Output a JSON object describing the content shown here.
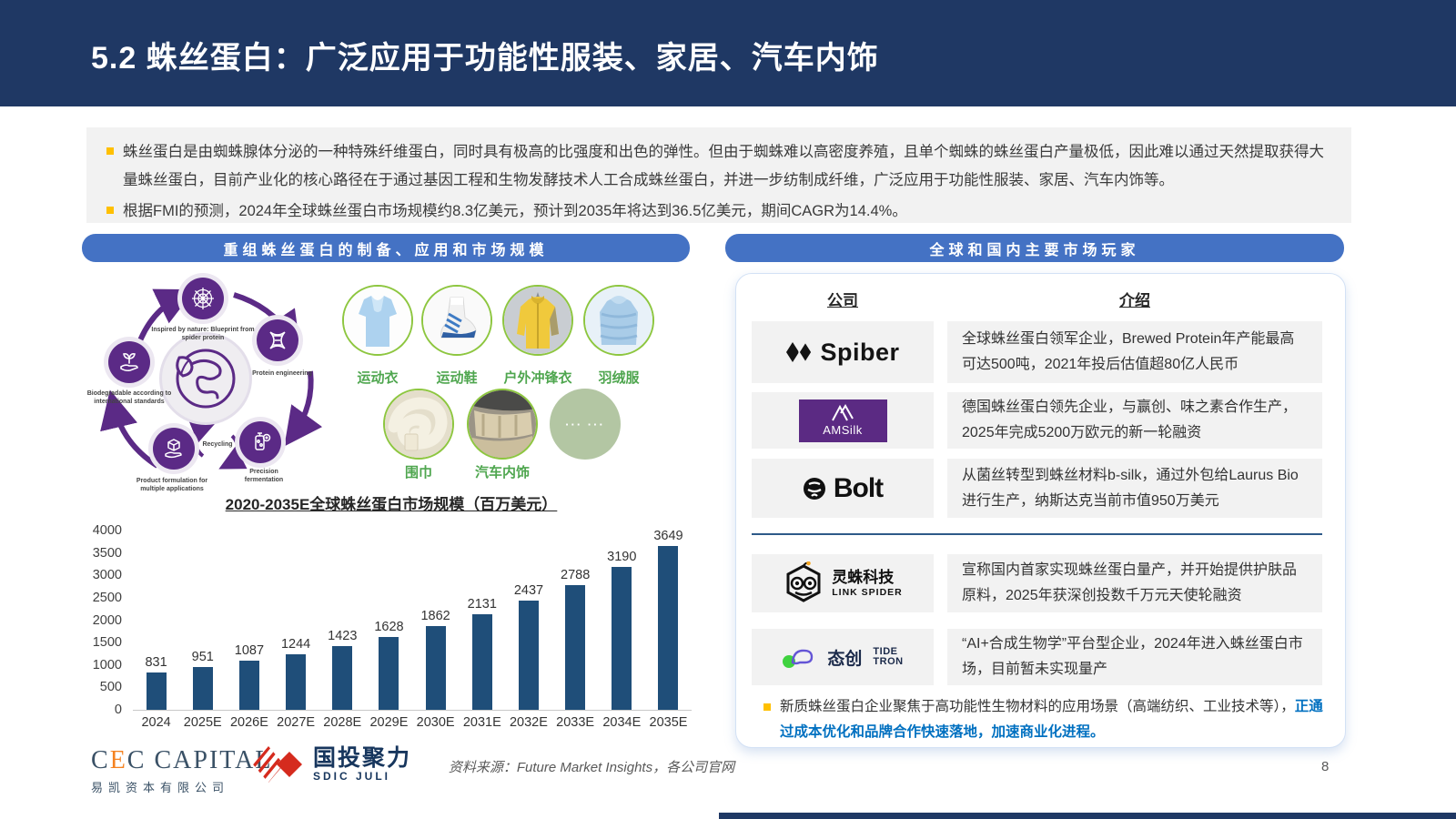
{
  "header": {
    "title": "5.2 蛛丝蛋白：广泛应用于功能性服装、家居、汽车内饰"
  },
  "summary": {
    "bullets": [
      "蛛丝蛋白是由蜘蛛腺体分泌的一种特殊纤维蛋白，同时具有极高的比强度和出色的弹性。但由于蜘蛛难以高密度养殖，且单个蜘蛛的蛛丝蛋白产量极低，因此难以通过天然提取获得大量蛛丝蛋白，目前产业化的核心路径在于通过基因工程和生物发酵技术人工合成蛛丝蛋白，并进一步纺制成纤维，广泛应用于功能性服装、家居、汽车内饰等。",
      "根据FMI的预测，2024年全球蛛丝蛋白市场规模约8.3亿美元，预计到2035年将达到36.5亿美元，期间CAGR为14.4%。"
    ]
  },
  "left_panel": {
    "title": "重组蛛丝蛋白的制备、应用和市场规模",
    "cycle": {
      "top": "Inspired by nature: Blueprint from spider protein",
      "right": "Protein engineering",
      "bottom_right": "Precision fermentation",
      "bottom_left": "Product formulation for multiple applications",
      "left": "Biodegradable according to international standards",
      "center": "Recycling"
    },
    "products": [
      "运动衣",
      "运动鞋",
      "户外冲锋衣",
      "羽绒服",
      "围巾",
      "汽车内饰",
      "··· ···"
    ],
    "chart_title": "2020-2035E全球蛛丝蛋白市场规模（百万美元）"
  },
  "chart_data": {
    "type": "bar",
    "title": "2020-2035E全球蛛丝蛋白市场规模（百万美元）",
    "categories": [
      "2024",
      "2025E",
      "2026E",
      "2027E",
      "2028E",
      "2029E",
      "2030E",
      "2031E",
      "2032E",
      "2033E",
      "2034E",
      "2035E"
    ],
    "values": [
      831,
      951,
      1087,
      1244,
      1423,
      1628,
      1862,
      2131,
      2437,
      2788,
      3190,
      3649
    ],
    "xlabel": "",
    "ylabel": "",
    "ylim": [
      0,
      4000
    ],
    "ytick_step": 500,
    "bar_color": "#1F4E79",
    "grid": false,
    "legend": false
  },
  "right_panel": {
    "title": "全球和国内主要市场玩家",
    "table": {
      "col_company": "公司",
      "col_intro": "介绍",
      "rows": [
        {
          "company": "Spiber",
          "logo_text": "Spiber",
          "intro": "全球蛛丝蛋白领军企业，Brewed Protein年产能最高可达500吨，2021年投后估值超80亿人民币"
        },
        {
          "company": "AMSilk",
          "logo_text": "AMSilk",
          "intro": "德国蛛丝蛋白领先企业，与赢创、味之素合作生产，2025年完成5200万欧元的新一轮融资"
        },
        {
          "company": "Bolt",
          "logo_text": "Bolt",
          "intro": "从菌丝转型到蛛丝材料b-silk，通过外包给Laurus Bio进行生产，纳斯达克当前市值950万美元"
        },
        {
          "company": "灵蛛科技 LINK SPIDER",
          "logo_cn": "灵蛛科技",
          "logo_en": "LINK SPIDER",
          "intro": "宣称国内首家实现蛛丝蛋白量产，并开始提供护肤品原料，2025年获深创投数千万元天使轮融资"
        },
        {
          "company": "态创 TIDETRON",
          "logo_cn": "态创",
          "logo_en1": "TIDE",
          "logo_en2": "TRON",
          "intro": "“AI+合成生物学”平台型企业，2024年进入蛛丝蛋白市场，目前暂未实现量产"
        }
      ]
    },
    "footnote": {
      "normal": "新质蛛丝蛋白企业聚焦于高功能性生物材料的应用场景（高端纺织、工业技术等），",
      "highlight": "正通过成本优化和品牌合作快速落地，加速商业化进程。"
    }
  },
  "footer": {
    "cec": {
      "c1": "C",
      "e": "E",
      "rest": "C CAPITAL",
      "sub": "易凯资本有限公司"
    },
    "sdic": {
      "name": "国投聚力",
      "sub": "SDIC JULI"
    },
    "source": "资料来源：Future Market Insights，各公司官网",
    "page": "8"
  },
  "colors": {
    "header_navy": "#1F3864",
    "pill_blue": "#4472C4",
    "bar_navy": "#1F4E79",
    "green_label": "#4FA64F",
    "diagram_purple": "#5B2A86",
    "bullet_orange": "#FFC000",
    "highlight_blue": "#0070C0",
    "logo_red": "#D52B1E",
    "amsilk_purple": "#5B2A83"
  }
}
